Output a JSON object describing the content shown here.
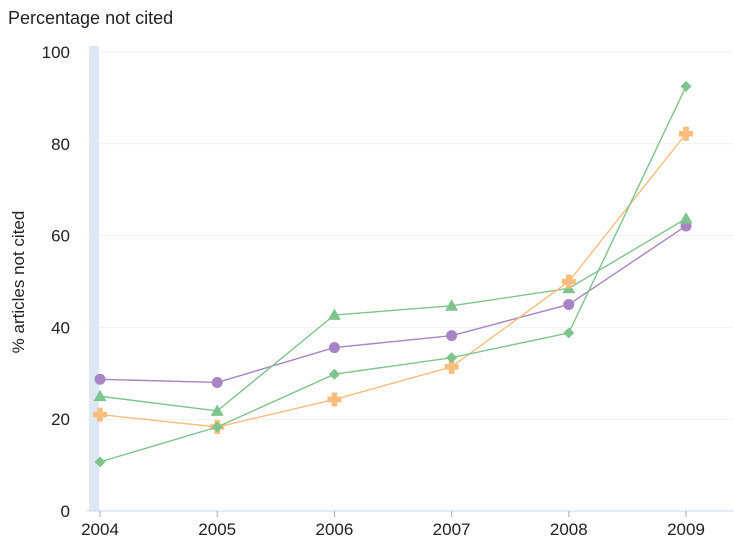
{
  "chart_data": {
    "type": "line",
    "title": "Percentage not cited",
    "xlabel": "",
    "ylabel": "% articles not cited",
    "categories": [
      "2004",
      "2005",
      "2006",
      "2007",
      "2008",
      "2009"
    ],
    "ylim": [
      0,
      100
    ],
    "yticks": [
      "0",
      "20",
      "40",
      "60",
      "80",
      "100"
    ],
    "grid": true,
    "legend": "none",
    "series": [
      {
        "marker": "circle",
        "color": "#a984c4",
        "values": [
          28.7,
          28.0,
          35.6,
          38.2,
          45.0,
          62.1
        ]
      },
      {
        "marker": "triangle",
        "color": "#7ec48c",
        "values": [
          25.0,
          21.8,
          42.7,
          44.7,
          48.5,
          63.7
        ]
      },
      {
        "marker": "cross",
        "color": "#fbbd7c",
        "values": [
          21.0,
          18.3,
          24.3,
          31.4,
          50.0,
          82.2
        ]
      },
      {
        "marker": "diamond",
        "color": "#7ec48c",
        "values": [
          10.7,
          18.3,
          29.8,
          33.4,
          38.8,
          92.5
        ]
      }
    ],
    "highlight_band_color": "#dce8f3"
  }
}
